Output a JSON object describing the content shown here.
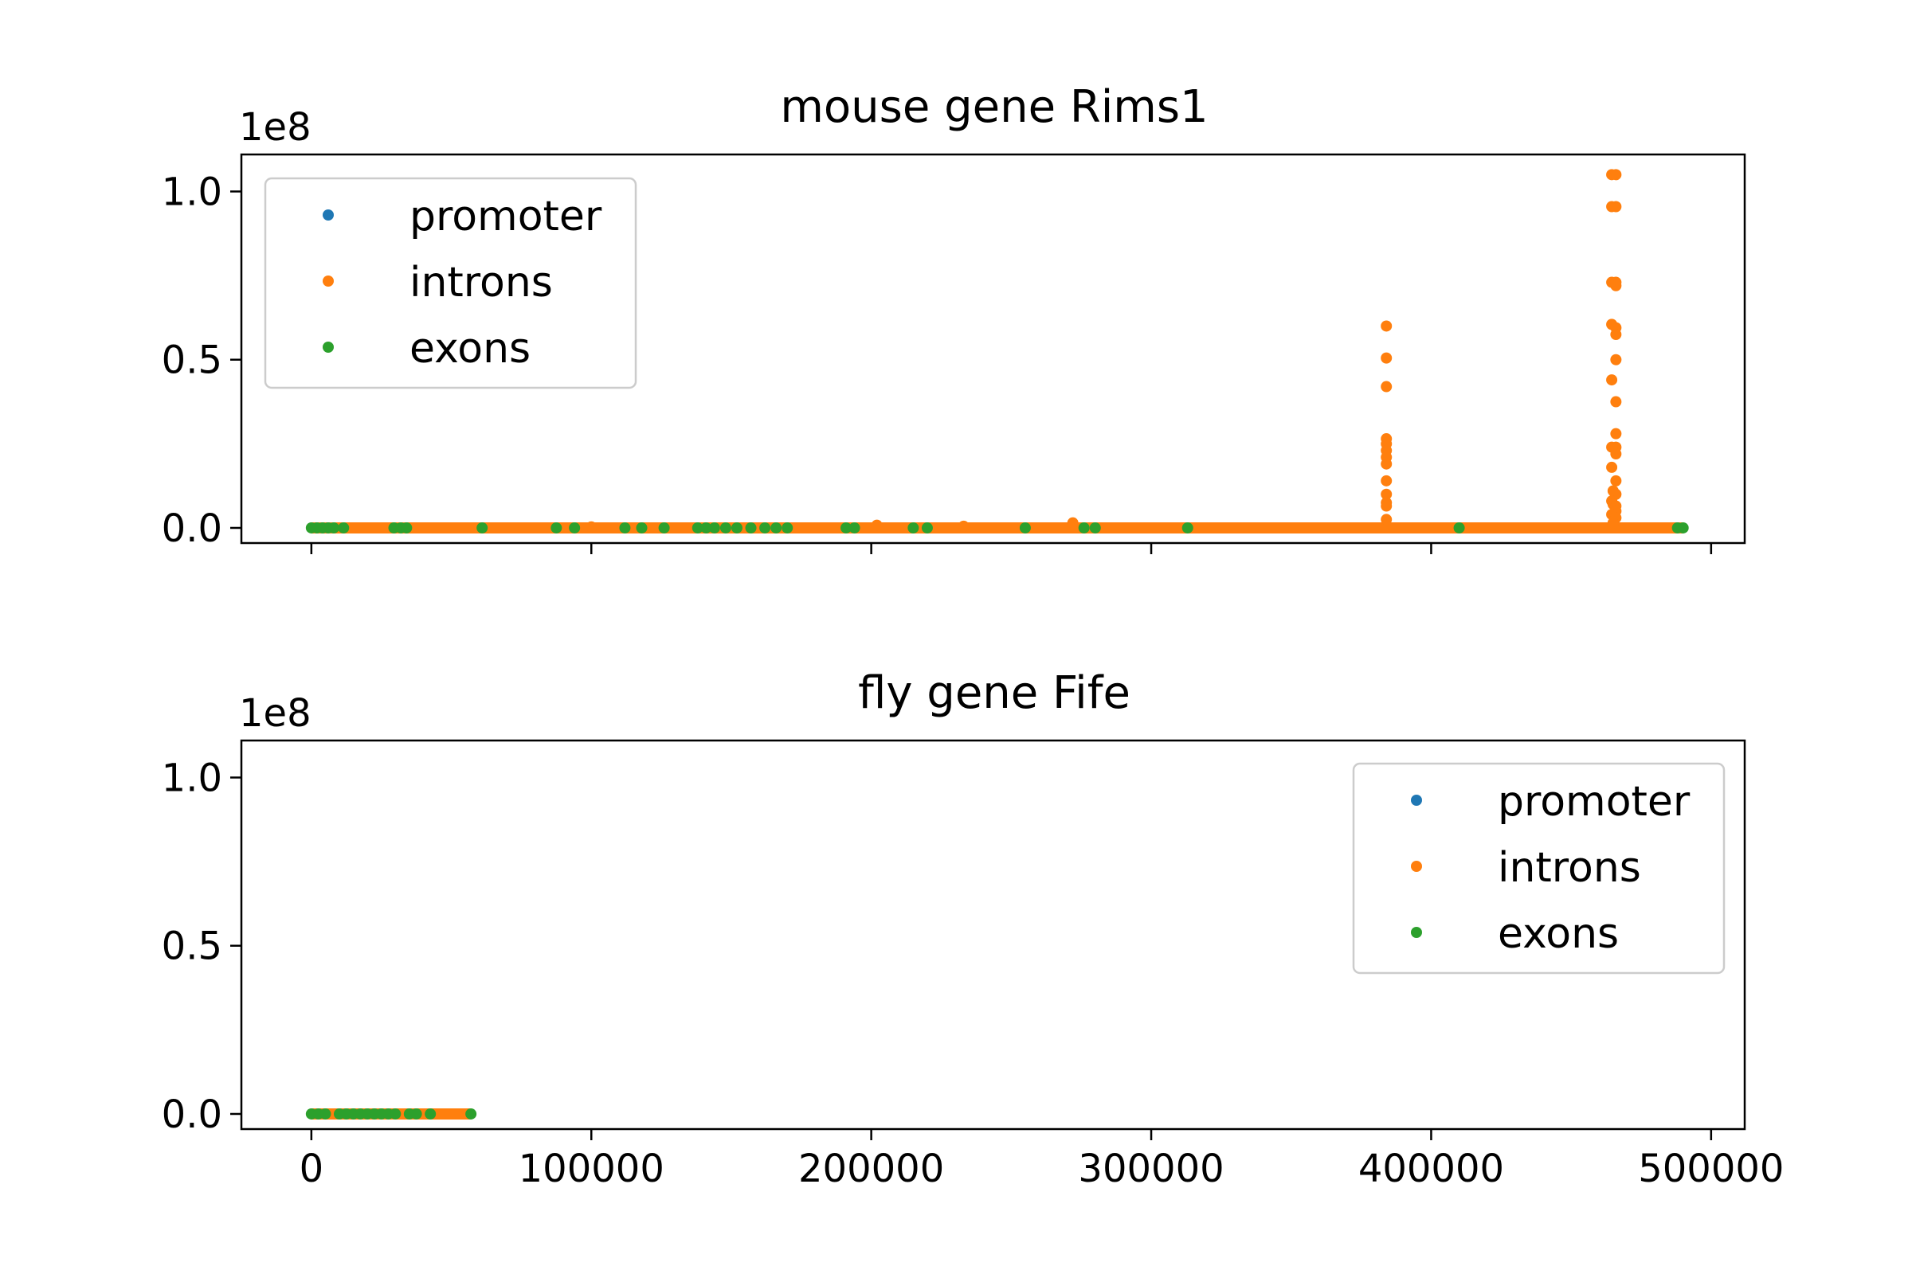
{
  "colors": {
    "promoter": "#1f77b4",
    "introns": "#ff7f0e",
    "exons": "#2ca02c",
    "axis": "#000000",
    "background": "#ffffff"
  },
  "chart_data": [
    {
      "type": "scatter",
      "title": "mouse gene Rims1",
      "xlabel": "",
      "ylabel": "",
      "y_offset_label": "1e8",
      "xlim": [
        -25000,
        512000
      ],
      "ylim": [
        -4500000,
        111000000
      ],
      "x_ticks": [
        0,
        100000,
        200000,
        300000,
        400000,
        500000
      ],
      "x_tick_labels_visible": false,
      "y_ticks": [
        0,
        50000000,
        100000000
      ],
      "y_tick_labels": [
        "0.0",
        "0.5",
        "1.0"
      ],
      "grid": false,
      "legend": {
        "position": "upper left",
        "entries": [
          "promoter",
          "introns",
          "exons"
        ]
      },
      "series": [
        {
          "name": "promoter",
          "color": "#1f77b4",
          "points": []
        },
        {
          "name": "introns",
          "color": "#ff7f0e",
          "baseline_range": [
            0,
            490000
          ],
          "points": [
            [
              384000,
              60000000
            ],
            [
              384000,
              50500000
            ],
            [
              384000,
              42000000
            ],
            [
              384000,
              26500000
            ],
            [
              384000,
              25000000
            ],
            [
              384000,
              23000000
            ],
            [
              384000,
              21000000
            ],
            [
              384000,
              19000000
            ],
            [
              384000,
              14000000
            ],
            [
              384000,
              10000000
            ],
            [
              384000,
              7500000
            ],
            [
              384000,
              6500000
            ],
            [
              384000,
              2500000
            ],
            [
              272000,
              1500000
            ],
            [
              202000,
              800000
            ],
            [
              233000,
              500000
            ],
            [
              100000,
              300000
            ],
            [
              464500,
              105000000
            ],
            [
              466000,
              105000000
            ],
            [
              464500,
              95500000
            ],
            [
              466000,
              95500000
            ],
            [
              464500,
              73000000
            ],
            [
              466000,
              73000000
            ],
            [
              466000,
              72000000
            ],
            [
              464500,
              60500000
            ],
            [
              466000,
              59500000
            ],
            [
              466000,
              57500000
            ],
            [
              466000,
              50000000
            ],
            [
              464500,
              44000000
            ],
            [
              466000,
              37500000
            ],
            [
              466000,
              28000000
            ],
            [
              464500,
              24000000
            ],
            [
              466000,
              24000000
            ],
            [
              466000,
              22000000
            ],
            [
              464500,
              18000000
            ],
            [
              466000,
              14000000
            ],
            [
              465000,
              11000000
            ],
            [
              466000,
              10000000
            ],
            [
              464500,
              8000000
            ],
            [
              465000,
              7000000
            ],
            [
              466000,
              6500000
            ],
            [
              466000,
              5000000
            ],
            [
              464500,
              4000000
            ],
            [
              466000,
              3000000
            ],
            [
              465000,
              1500000
            ]
          ]
        },
        {
          "name": "exons",
          "color": "#2ca02c",
          "points": [
            [
              0,
              0
            ],
            [
              2000,
              0
            ],
            [
              4000,
              0
            ],
            [
              6000,
              0
            ],
            [
              8000,
              0
            ],
            [
              11500,
              0
            ],
            [
              29500,
              0
            ],
            [
              32000,
              0
            ],
            [
              34000,
              0
            ],
            [
              61000,
              0
            ],
            [
              87500,
              0
            ],
            [
              94000,
              0
            ],
            [
              112000,
              0
            ],
            [
              118000,
              0
            ],
            [
              126000,
              0
            ],
            [
              138000,
              0
            ],
            [
              141000,
              0
            ],
            [
              144000,
              0
            ],
            [
              148000,
              0
            ],
            [
              152000,
              0
            ],
            [
              157000,
              0
            ],
            [
              162000,
              0
            ],
            [
              166000,
              0
            ],
            [
              170000,
              0
            ],
            [
              191000,
              0
            ],
            [
              194000,
              0
            ],
            [
              215000,
              0
            ],
            [
              220000,
              0
            ],
            [
              255000,
              0
            ],
            [
              276000,
              0
            ],
            [
              280000,
              0
            ],
            [
              313000,
              0
            ],
            [
              410000,
              0
            ],
            [
              488000,
              0
            ],
            [
              490000,
              0
            ]
          ]
        }
      ]
    },
    {
      "type": "scatter",
      "title": "fly gene Fife",
      "xlabel": "",
      "ylabel": "",
      "y_offset_label": "1e8",
      "xlim": [
        -25000,
        512000
      ],
      "ylim": [
        -4500000,
        111000000
      ],
      "x_ticks": [
        0,
        100000,
        200000,
        300000,
        400000,
        500000
      ],
      "x_tick_labels": [
        "0",
        "100000",
        "200000",
        "300000",
        "400000",
        "500000"
      ],
      "y_ticks": [
        0,
        50000000,
        100000000
      ],
      "y_tick_labels": [
        "0.0",
        "0.5",
        "1.0"
      ],
      "grid": false,
      "legend": {
        "position": "upper right",
        "entries": [
          "promoter",
          "introns",
          "exons"
        ]
      },
      "series": [
        {
          "name": "promoter",
          "color": "#1f77b4",
          "points": []
        },
        {
          "name": "introns",
          "color": "#ff7f0e",
          "baseline_range": [
            0,
            57000
          ],
          "points": []
        },
        {
          "name": "exons",
          "color": "#2ca02c",
          "points": [
            [
              0,
              0
            ],
            [
              2500,
              0
            ],
            [
              5000,
              0
            ],
            [
              10000,
              0
            ],
            [
              12500,
              0
            ],
            [
              15000,
              0
            ],
            [
              17500,
              0
            ],
            [
              20000,
              0
            ],
            [
              22500,
              0
            ],
            [
              25000,
              0
            ],
            [
              27500,
              0
            ],
            [
              30000,
              0
            ],
            [
              35000,
              0
            ],
            [
              37500,
              0
            ],
            [
              42500,
              0
            ],
            [
              57000,
              0
            ]
          ]
        }
      ]
    }
  ]
}
